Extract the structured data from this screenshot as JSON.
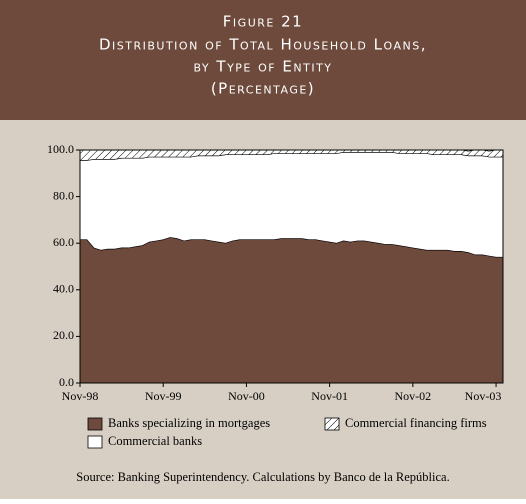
{
  "chart_data": {
    "type": "stacked-area",
    "figure_label": "Figure 21",
    "title_lines": [
      "Distribution of Total Household Loans,",
      "by Type of Entity"
    ],
    "subtitle": "(Percentage)",
    "categories": [
      "Nov-98",
      null,
      null,
      null,
      null,
      null,
      null,
      null,
      null,
      null,
      null,
      null,
      "Nov-99",
      null,
      null,
      null,
      null,
      null,
      null,
      null,
      null,
      null,
      null,
      null,
      "Nov-00",
      null,
      null,
      null,
      null,
      null,
      null,
      null,
      null,
      null,
      null,
      null,
      "Nov-01",
      null,
      null,
      null,
      null,
      null,
      null,
      null,
      null,
      null,
      null,
      null,
      "Nov-02",
      null,
      null,
      null,
      null,
      null,
      null,
      null,
      null,
      null,
      null,
      null,
      "Nov-03",
      null
    ],
    "series": [
      {
        "name": "Banks specializing in mortgages",
        "color": "#6e4a3c",
        "pattern": "solid",
        "values": [
          61.5,
          61.5,
          58,
          57,
          57.5,
          57.5,
          58,
          58,
          58.5,
          59,
          60.5,
          61,
          61.5,
          62.5,
          62,
          61,
          61.5,
          61.5,
          61.5,
          61,
          60.5,
          60,
          61,
          61.5,
          61.5,
          61.5,
          61.5,
          61.5,
          61.5,
          62,
          62,
          62,
          62,
          61.5,
          61.5,
          61,
          60.5,
          60,
          61,
          60.5,
          61,
          61,
          60.5,
          60,
          59.5,
          59.5,
          59,
          58.5,
          58,
          57.5,
          57,
          57,
          57,
          57,
          56.5,
          56.5,
          56,
          55,
          55,
          54.5,
          54,
          54
        ]
      },
      {
        "name": "Commercial banks",
        "color": "#ffffff",
        "pattern": "solid",
        "values": [
          34,
          34,
          38,
          39,
          38.5,
          38.5,
          38.5,
          38.5,
          38,
          37.5,
          36.5,
          36,
          35.5,
          34.5,
          35,
          36,
          35.5,
          36,
          36,
          36.5,
          37,
          38,
          37,
          36.5,
          36.5,
          36.5,
          36.5,
          36.5,
          37,
          36.5,
          36.5,
          36.5,
          36.5,
          37,
          37,
          37.5,
          38,
          38.5,
          38,
          38.5,
          38,
          38,
          38.5,
          39,
          39.5,
          39.5,
          39.5,
          40,
          40.5,
          41,
          41.5,
          41,
          41,
          41,
          41.5,
          41.5,
          41.5,
          42.5,
          42.5,
          42.5,
          43,
          43
        ]
      },
      {
        "name": "Commercial financing firms",
        "color": "#ffffff",
        "pattern": "hatch",
        "values": [
          4.5,
          4.5,
          4,
          4,
          4,
          4,
          3.5,
          3.5,
          3.5,
          3.5,
          3,
          3,
          3,
          3,
          3,
          3,
          3,
          2.5,
          2.5,
          2.5,
          2.5,
          2,
          2,
          2,
          2,
          2,
          2,
          2,
          1.5,
          1.5,
          1.5,
          1.5,
          1.5,
          1.5,
          1.5,
          1.5,
          1.5,
          1.5,
          1,
          1,
          1,
          1,
          1,
          1,
          1,
          1,
          1.5,
          1.5,
          1.5,
          1.5,
          1.5,
          2,
          2,
          2,
          2,
          2,
          2,
          2.5,
          2.5,
          2.5,
          3,
          3
        ]
      }
    ],
    "ylim": [
      0,
      100
    ],
    "yticks": [
      {
        "value": 0,
        "label": "0.0"
      },
      {
        "value": 20,
        "label": "20.0"
      },
      {
        "value": 40,
        "label": "40.0"
      },
      {
        "value": 60,
        "label": "60.0"
      },
      {
        "value": 80,
        "label": "80.0"
      },
      {
        "value": 100,
        "label": "100.0"
      }
    ],
    "source": "Source: Banking Superintendency.  Calculations by Banco de la República."
  }
}
